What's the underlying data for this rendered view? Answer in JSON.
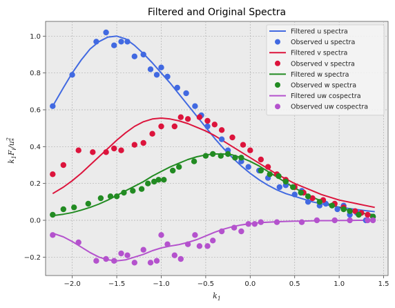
{
  "chart_data": {
    "type": "line",
    "title": "Filtered and Original Spectra",
    "xlabel": "k_1",
    "ylabel": "k_1 F_i / u_*^2",
    "xlim": [
      -2.3,
      1.55
    ],
    "ylim": [
      -0.3,
      1.08
    ],
    "xticks": [
      -2.0,
      -1.5,
      -1.0,
      -0.5,
      0.0,
      0.5,
      1.0,
      1.5
    ],
    "xtick_labels": [
      "−2.0",
      "−1.5",
      "−1.0",
      "−0.5",
      "0.0",
      "0.5",
      "1.0",
      "1.5"
    ],
    "yticks": [
      -0.2,
      0.0,
      0.2,
      0.4,
      0.6,
      0.8,
      1.0
    ],
    "ytick_labels": [
      "−0.2",
      "0.0",
      "0.2",
      "0.4",
      "0.6",
      "0.8",
      "1.0"
    ],
    "grid": true,
    "legend_position": "top-right",
    "legend": [
      {
        "label": "Filtered u spectra",
        "kind": "line",
        "color": "#4169e1"
      },
      {
        "label": "Observed u spectra",
        "kind": "marker",
        "color": "#4169e1"
      },
      {
        "label": "Filtered v spectra",
        "kind": "line",
        "color": "#dc143c"
      },
      {
        "label": "Observed v spectra",
        "kind": "marker",
        "color": "#dc143c"
      },
      {
        "label": "Filtered w spectra",
        "kind": "line",
        "color": "#228b22"
      },
      {
        "label": "Observed w spectra",
        "kind": "marker",
        "color": "#228b22"
      },
      {
        "label": "Filtered uw cospectra",
        "kind": "line",
        "color": "#b452cd"
      },
      {
        "label": "Observed uw cospectra",
        "kind": "marker",
        "color": "#b452cd"
      }
    ],
    "series": [
      {
        "name": "Filtered u spectra",
        "kind": "line",
        "color": "#4169e1",
        "x": [
          -2.22,
          -2.1,
          -2.0,
          -1.9,
          -1.8,
          -1.7,
          -1.6,
          -1.5,
          -1.4,
          -1.3,
          -1.2,
          -1.1,
          -1.0,
          -0.9,
          -0.8,
          -0.7,
          -0.6,
          -0.5,
          -0.4,
          -0.3,
          -0.2,
          -0.1,
          0.0,
          0.1,
          0.2,
          0.3,
          0.4,
          0.5,
          0.6,
          0.7,
          0.8,
          0.9,
          1.0,
          1.1,
          1.2,
          1.3,
          1.4
        ],
        "y": [
          0.62,
          0.72,
          0.8,
          0.87,
          0.93,
          0.97,
          0.995,
          1.0,
          0.985,
          0.95,
          0.905,
          0.855,
          0.8,
          0.745,
          0.685,
          0.625,
          0.565,
          0.505,
          0.445,
          0.39,
          0.34,
          0.295,
          0.255,
          0.22,
          0.19,
          0.165,
          0.145,
          0.13,
          0.115,
          0.1,
          0.09,
          0.08,
          0.072,
          0.065,
          0.058,
          0.052,
          0.047
        ]
      },
      {
        "name": "Observed u spectra",
        "kind": "marker",
        "color": "#4169e1",
        "x": [
          -2.22,
          -2.0,
          -1.73,
          -1.62,
          -1.53,
          -1.45,
          -1.38,
          -1.3,
          -1.2,
          -1.12,
          -1.05,
          -1.0,
          -0.93,
          -0.82,
          -0.72,
          -0.62,
          -0.55,
          -0.48,
          -0.32,
          -0.25,
          -0.17,
          -0.1,
          -0.02,
          0.1,
          0.2,
          0.33,
          0.4,
          0.5,
          0.58,
          0.65,
          0.78,
          0.85,
          0.98,
          1.05,
          1.12,
          1.2,
          1.3,
          1.38
        ],
        "y": [
          0.62,
          0.79,
          0.97,
          1.02,
          0.95,
          0.97,
          0.97,
          0.89,
          0.9,
          0.82,
          0.79,
          0.83,
          0.78,
          0.72,
          0.69,
          0.62,
          0.57,
          0.51,
          0.44,
          0.38,
          0.34,
          0.32,
          0.29,
          0.27,
          0.23,
          0.18,
          0.19,
          0.14,
          0.16,
          0.1,
          0.08,
          0.09,
          0.06,
          0.08,
          0.03,
          0.04,
          0.0,
          0.02
        ]
      },
      {
        "name": "Filtered v spectra",
        "kind": "line",
        "color": "#dc143c",
        "x": [
          -2.22,
          -2.1,
          -2.0,
          -1.9,
          -1.8,
          -1.7,
          -1.6,
          -1.5,
          -1.4,
          -1.3,
          -1.2,
          -1.1,
          -1.0,
          -0.9,
          -0.8,
          -0.7,
          -0.6,
          -0.5,
          -0.4,
          -0.3,
          -0.2,
          -0.1,
          0.0,
          0.1,
          0.2,
          0.3,
          0.4,
          0.5,
          0.6,
          0.7,
          0.8,
          0.9,
          1.0,
          1.1,
          1.2,
          1.3,
          1.4
        ],
        "y": [
          0.145,
          0.18,
          0.215,
          0.255,
          0.3,
          0.345,
          0.39,
          0.435,
          0.475,
          0.51,
          0.535,
          0.55,
          0.555,
          0.55,
          0.54,
          0.525,
          0.505,
          0.485,
          0.46,
          0.43,
          0.4,
          0.37,
          0.34,
          0.31,
          0.28,
          0.25,
          0.225,
          0.2,
          0.18,
          0.16,
          0.14,
          0.125,
          0.11,
          0.1,
          0.09,
          0.08,
          0.07
        ]
      },
      {
        "name": "Observed v spectra",
        "kind": "marker",
        "color": "#dc143c",
        "x": [
          -2.22,
          -2.1,
          -1.93,
          -1.77,
          -1.62,
          -1.53,
          -1.45,
          -1.3,
          -1.2,
          -1.1,
          -1.0,
          -0.85,
          -0.78,
          -0.7,
          -0.57,
          -0.48,
          -0.4,
          -0.32,
          -0.2,
          -0.08,
          0.0,
          0.12,
          0.2,
          0.3,
          0.4,
          0.5,
          0.6,
          0.7,
          0.82,
          0.95,
          1.05,
          1.18,
          1.25,
          1.32
        ],
        "y": [
          0.25,
          0.3,
          0.38,
          0.37,
          0.37,
          0.39,
          0.38,
          0.41,
          0.42,
          0.47,
          0.51,
          0.51,
          0.56,
          0.55,
          0.56,
          0.54,
          0.52,
          0.49,
          0.45,
          0.41,
          0.38,
          0.33,
          0.29,
          0.25,
          0.22,
          0.18,
          0.15,
          0.12,
          0.11,
          0.09,
          0.07,
          0.05,
          0.04,
          0.03
        ]
      },
      {
        "name": "Filtered w spectra",
        "kind": "line",
        "color": "#228b22",
        "x": [
          -2.22,
          -2.1,
          -2.0,
          -1.9,
          -1.8,
          -1.7,
          -1.6,
          -1.5,
          -1.4,
          -1.3,
          -1.2,
          -1.1,
          -1.0,
          -0.9,
          -0.8,
          -0.7,
          -0.6,
          -0.5,
          -0.4,
          -0.3,
          -0.2,
          -0.1,
          0.0,
          0.1,
          0.2,
          0.3,
          0.4,
          0.5,
          0.6,
          0.7,
          0.8,
          0.9,
          1.0,
          1.1,
          1.2,
          1.3,
          1.4
        ],
        "y": [
          0.025,
          0.033,
          0.042,
          0.055,
          0.07,
          0.088,
          0.11,
          0.135,
          0.16,
          0.185,
          0.21,
          0.24,
          0.265,
          0.29,
          0.31,
          0.33,
          0.345,
          0.355,
          0.36,
          0.36,
          0.355,
          0.34,
          0.32,
          0.295,
          0.265,
          0.235,
          0.205,
          0.175,
          0.15,
          0.125,
          0.105,
          0.085,
          0.07,
          0.055,
          0.045,
          0.035,
          0.03
        ]
      },
      {
        "name": "Observed w spectra",
        "kind": "marker",
        "color": "#228b22",
        "x": [
          -2.22,
          -2.1,
          -1.98,
          -1.82,
          -1.68,
          -1.57,
          -1.5,
          -1.42,
          -1.32,
          -1.22,
          -1.15,
          -1.08,
          -1.03,
          -0.97,
          -0.87,
          -0.8,
          -0.63,
          -0.5,
          -0.42,
          -0.33,
          -0.25,
          -0.17,
          -0.1,
          0.12,
          0.22,
          0.32,
          0.4,
          0.48,
          0.57,
          0.65,
          0.78,
          0.92,
          1.05,
          1.12,
          1.22,
          1.38
        ],
        "y": [
          0.03,
          0.06,
          0.07,
          0.09,
          0.12,
          0.13,
          0.13,
          0.15,
          0.16,
          0.17,
          0.2,
          0.21,
          0.22,
          0.22,
          0.27,
          0.29,
          0.32,
          0.35,
          0.36,
          0.35,
          0.36,
          0.34,
          0.34,
          0.27,
          0.25,
          0.24,
          0.21,
          0.18,
          0.15,
          0.13,
          0.1,
          0.08,
          0.06,
          0.05,
          0.03,
          0.02
        ]
      },
      {
        "name": "Filtered uw cospectra",
        "kind": "line",
        "color": "#b452cd",
        "x": [
          -2.22,
          -2.1,
          -2.0,
          -1.9,
          -1.8,
          -1.7,
          -1.6,
          -1.5,
          -1.4,
          -1.3,
          -1.2,
          -1.1,
          -1.0,
          -0.9,
          -0.8,
          -0.7,
          -0.6,
          -0.5,
          -0.4,
          -0.3,
          -0.2,
          -0.1,
          0.0,
          0.1,
          0.2,
          0.3,
          0.4,
          0.5,
          0.6,
          0.7,
          0.8,
          0.9,
          1.0,
          1.1,
          1.2,
          1.3,
          1.4
        ],
        "y": [
          -0.07,
          -0.09,
          -0.115,
          -0.145,
          -0.175,
          -0.2,
          -0.215,
          -0.22,
          -0.215,
          -0.2,
          -0.185,
          -0.165,
          -0.15,
          -0.14,
          -0.132,
          -0.12,
          -0.105,
          -0.085,
          -0.065,
          -0.048,
          -0.035,
          -0.025,
          -0.018,
          -0.013,
          -0.01,
          -0.008,
          -0.006,
          -0.005,
          -0.004,
          -0.003,
          -0.002,
          -0.002,
          -0.001,
          -0.001,
          0.0,
          0.0,
          0.0
        ]
      },
      {
        "name": "Observed uw cospectra",
        "kind": "marker",
        "color": "#b452cd",
        "x": [
          -2.22,
          -1.93,
          -1.73,
          -1.62,
          -1.53,
          -1.45,
          -1.38,
          -1.3,
          -1.2,
          -1.12,
          -1.05,
          -1.0,
          -0.93,
          -0.85,
          -0.78,
          -0.7,
          -0.62,
          -0.57,
          -0.48,
          -0.42,
          -0.32,
          -0.18,
          -0.1,
          -0.02,
          0.05,
          0.12,
          0.3,
          0.58,
          0.75,
          0.95,
          1.12,
          1.32,
          1.38
        ],
        "y": [
          -0.08,
          -0.12,
          -0.22,
          -0.21,
          -0.22,
          -0.18,
          -0.19,
          -0.23,
          -0.16,
          -0.23,
          -0.22,
          -0.08,
          -0.13,
          -0.19,
          -0.21,
          -0.13,
          -0.08,
          -0.14,
          -0.14,
          -0.11,
          -0.06,
          -0.04,
          -0.06,
          -0.02,
          -0.02,
          -0.01,
          -0.01,
          -0.01,
          0.0,
          0.0,
          0.0,
          0.0,
          0.0
        ]
      }
    ]
  }
}
